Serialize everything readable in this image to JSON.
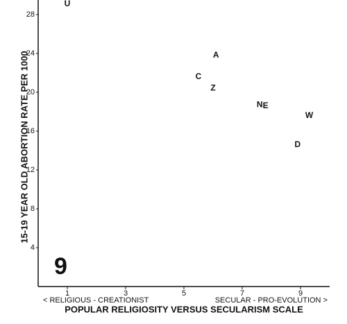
{
  "chart_data": {
    "type": "scatter",
    "y_label": "15-19 YEAR OLD ABORTION RATE PER 1000",
    "x_label": "POPULAR RELIGIOSITY VERSUS SECULARISM SCALE",
    "x_left_note": "< RELIGIOUS - CREATIONIST",
    "x_right_note": "SECULAR - PRO-EVOLUTION >",
    "panel_label": "9",
    "point_labels": [
      "U",
      "A",
      "C",
      "Z",
      "N",
      "E",
      "W",
      "D"
    ],
    "x": [
      1.0,
      6.1,
      5.5,
      6.0,
      7.6,
      7.8,
      9.3,
      8.9
    ],
    "values": [
      29.1,
      23.8,
      21.6,
      20.4,
      18.7,
      18.6,
      17.6,
      14.6
    ],
    "color": "#111111",
    "xlim": [
      0,
      10
    ],
    "xticks": [
      1,
      3,
      5,
      7,
      9
    ],
    "ylim": [
      0,
      29.5
    ],
    "yticks": [
      4,
      8,
      12,
      16,
      20,
      24,
      28
    ]
  }
}
